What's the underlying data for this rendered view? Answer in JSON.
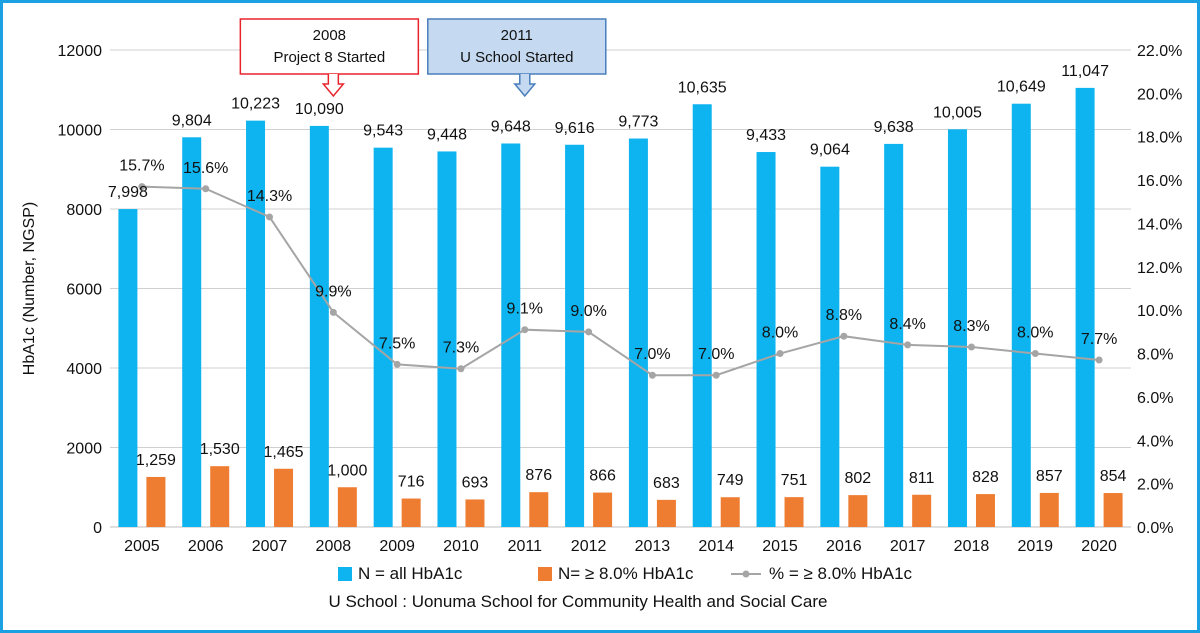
{
  "chart_data": {
    "type": "bar+line",
    "categories": [
      "2005",
      "2006",
      "2007",
      "2008",
      "2009",
      "2010",
      "2011",
      "2012",
      "2013",
      "2014",
      "2015",
      "2016",
      "2017",
      "2018",
      "2019",
      "2020"
    ],
    "series": [
      {
        "name": "N = all HbA1c",
        "kind": "bar",
        "axis": "left",
        "color": "#0db4ef",
        "values": [
          7998,
          9804,
          10223,
          10090,
          9543,
          9448,
          9648,
          9616,
          9773,
          10635,
          9433,
          9064,
          9638,
          10005,
          10649,
          11047
        ],
        "labels": [
          "7,998",
          "9,804",
          "10,223",
          "10,090",
          "9,543",
          "9,448",
          "9,648",
          "9,616",
          "9,773",
          "10,635",
          "9,433",
          "9,064",
          "9,638",
          "10,005",
          "10,649",
          "11,047"
        ]
      },
      {
        "name": "N= ≥ 8.0% HbA1c",
        "kind": "bar",
        "axis": "left",
        "color": "#ef7d31",
        "values": [
          1259,
          1530,
          1465,
          1000,
          716,
          693,
          876,
          866,
          683,
          749,
          751,
          802,
          811,
          828,
          857,
          854
        ],
        "labels": [
          "1,259",
          "1,530",
          "1,465",
          "1,000",
          "716",
          "693",
          "876",
          "866",
          "683",
          "749",
          "751",
          "802",
          "811",
          "828",
          "857",
          "854"
        ]
      },
      {
        "name": "% = ≥ 8.0% HbA1c",
        "kind": "line",
        "axis": "right",
        "color": "#a5a5a5",
        "values": [
          15.7,
          15.6,
          14.3,
          9.9,
          7.5,
          7.3,
          9.1,
          9.0,
          7.0,
          7.0,
          8.0,
          8.8,
          8.4,
          8.3,
          8.0,
          7.7
        ],
        "labels": [
          "15.7%",
          "15.6%",
          "14.3%",
          "9.9%",
          "7.5%",
          "7.3%",
          "9.1%",
          "9.0%",
          "7.0%",
          "7.0%",
          "8.0%",
          "8.8%",
          "8.4%",
          "8.3%",
          "8.0%",
          "7.7%"
        ]
      }
    ],
    "ylabel": "HbA1c (Number, NGSP)",
    "ylim": [
      0,
      12000
    ],
    "yticks": [
      "0",
      "2000",
      "4000",
      "6000",
      "8000",
      "10000",
      "12000"
    ],
    "ylim_right": [
      0,
      22
    ],
    "yticks_right": [
      "0.0%",
      "2.0%",
      "4.0%",
      "6.0%",
      "8.0%",
      "10.0%",
      "12.0%",
      "14.0%",
      "16.0%",
      "18.0%",
      "20.0%",
      "22.0%"
    ],
    "grid": true,
    "legend_position": "bottom",
    "annotations": [
      {
        "category": "2008",
        "line1": "2008",
        "line2": "Project 8 Started",
        "border": "#e8232a",
        "fill": "#ffffff",
        "arrow": "#e8232a"
      },
      {
        "category": "2011",
        "line1": "2011",
        "line2": "U School Started",
        "border": "#4a7ebb",
        "fill": "#c5d9f1",
        "arrow": "#4a7ebb"
      }
    ],
    "footnote": "U School : Uonuma School for Community Health and Social Care"
  }
}
